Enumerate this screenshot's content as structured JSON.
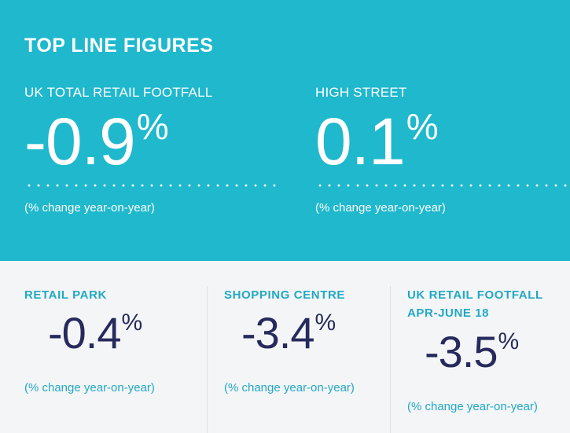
{
  "header": {
    "title": "TOP LINE FIGURES"
  },
  "top_stats": [
    {
      "label": "UK TOTAL RETAIL FOOTFALL",
      "value": "-0.9",
      "unit": "%",
      "note": "(% change year-on-year)"
    },
    {
      "label": "HIGH STREET",
      "value": "0.1",
      "unit": "%",
      "note": "(% change year-on-year)"
    }
  ],
  "bottom_stats": [
    {
      "label": "RETAIL PARK",
      "value": "-0.4",
      "unit": "%",
      "note": "(% change year-on-year)"
    },
    {
      "label": "SHOPPING CENTRE",
      "value": "-3.4",
      "unit": "%",
      "note": "(% change year-on-year)"
    },
    {
      "label_line1": "UK RETAIL FOOTFALL",
      "label_line2": "APR-JUNE 18",
      "value": "-3.5",
      "unit": "%",
      "note": "(% change year-on-year)"
    }
  ],
  "colors": {
    "top_background": "#1fb8cd",
    "bottom_background": "#f4f5f7",
    "bottom_label": "#21a9c4",
    "bottom_value": "#262a5c"
  }
}
